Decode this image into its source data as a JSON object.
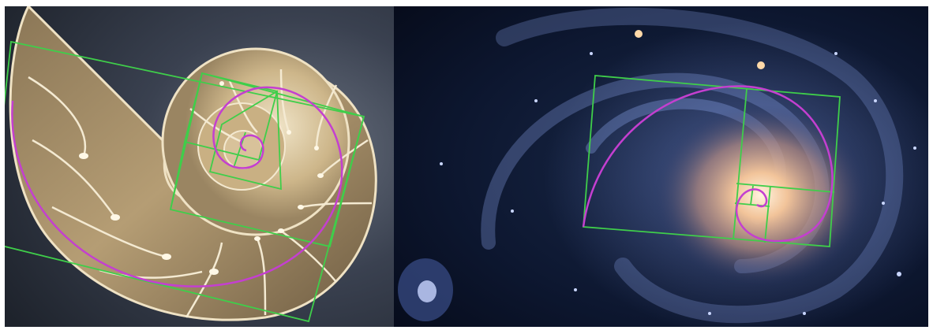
{
  "images": [
    {
      "subject": "nautilus-shell-cross-section",
      "overlay": "golden-spiral"
    },
    {
      "subject": "spiral-galaxy",
      "overlay": "golden-spiral"
    }
  ],
  "colors": {
    "spiral": "#c43fd0",
    "rectangles": "#3fce4a",
    "shell_background": "#2e3440",
    "shell_cream": "#d9c7a2",
    "galaxy_background": "#0a1226",
    "galaxy_stars": "#9fb5ff",
    "galaxy_core": "#f2c49a"
  }
}
